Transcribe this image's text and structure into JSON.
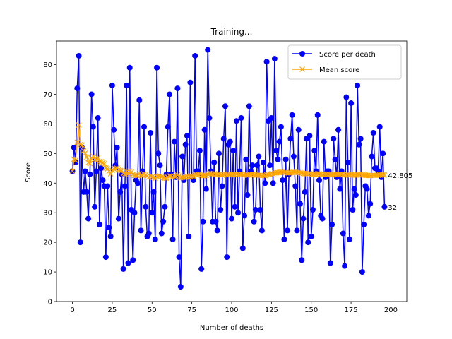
{
  "chart_data": {
    "type": "line",
    "title": "Training...",
    "xlabel": "Number of deaths",
    "ylabel": "Score",
    "xlim": [
      -10,
      210
    ],
    "ylim": [
      0,
      88
    ],
    "xticks": [
      0,
      25,
      50,
      75,
      100,
      125,
      150,
      175,
      200
    ],
    "yticks": [
      0,
      10,
      20,
      30,
      40,
      50,
      60,
      70,
      80
    ],
    "grid": false,
    "legend_position": "top-right",
    "series": [
      {
        "name": "Score per death",
        "color": "#0000ff",
        "marker": "circle",
        "x_start": 0,
        "values": [
          44,
          52,
          47,
          72,
          83,
          20,
          52,
          37,
          44,
          37,
          28,
          43,
          70,
          59,
          32,
          44,
          62,
          26,
          45,
          41,
          39,
          15,
          39,
          25,
          22,
          73,
          58,
          46,
          52,
          28,
          37,
          43,
          11,
          39,
          73,
          13,
          79,
          31,
          14,
          30,
          41,
          40,
          68,
          24,
          44,
          59,
          32,
          22,
          23,
          57,
          30,
          37,
          21,
          79,
          50,
          46,
          23,
          27,
          32,
          43,
          59,
          70,
          43,
          21,
          54,
          42,
          72,
          15,
          5,
          49,
          41,
          53,
          56,
          22,
          74,
          42,
          41,
          83,
          44,
          44,
          51,
          11,
          27,
          58,
          38,
          85,
          62,
          44,
          27,
          47,
          27,
          24,
          50,
          31,
          39,
          55,
          66,
          15,
          53,
          54,
          28,
          51,
          32,
          61,
          30,
          44,
          62,
          18,
          29,
          48,
          36,
          66,
          44,
          46,
          27,
          31,
          46,
          49,
          31,
          24,
          47,
          40,
          81,
          61,
          46,
          62,
          40,
          82,
          51,
          48,
          54,
          59,
          41,
          21,
          48,
          24,
          43,
          55,
          63,
          49,
          39,
          24,
          58,
          33,
          14,
          28,
          37,
          55,
          20,
          56,
          22,
          31,
          51,
          44,
          63,
          41,
          29,
          28,
          54,
          42,
          44,
          44,
          13,
          26,
          55,
          48,
          42,
          58,
          38,
          44,
          23,
          12,
          69,
          47,
          21,
          67,
          31,
          38,
          36,
          73,
          53,
          55,
          10,
          26,
          39,
          38,
          29,
          33,
          49,
          57,
          45,
          45,
          44,
          59,
          42,
          50,
          32
        ],
        "end_label": "32"
      },
      {
        "name": "Mean score",
        "color": "#ffa500",
        "marker": "x",
        "x_start": 0,
        "values_note": "",
        "end_label": "42.805"
      }
    ]
  }
}
